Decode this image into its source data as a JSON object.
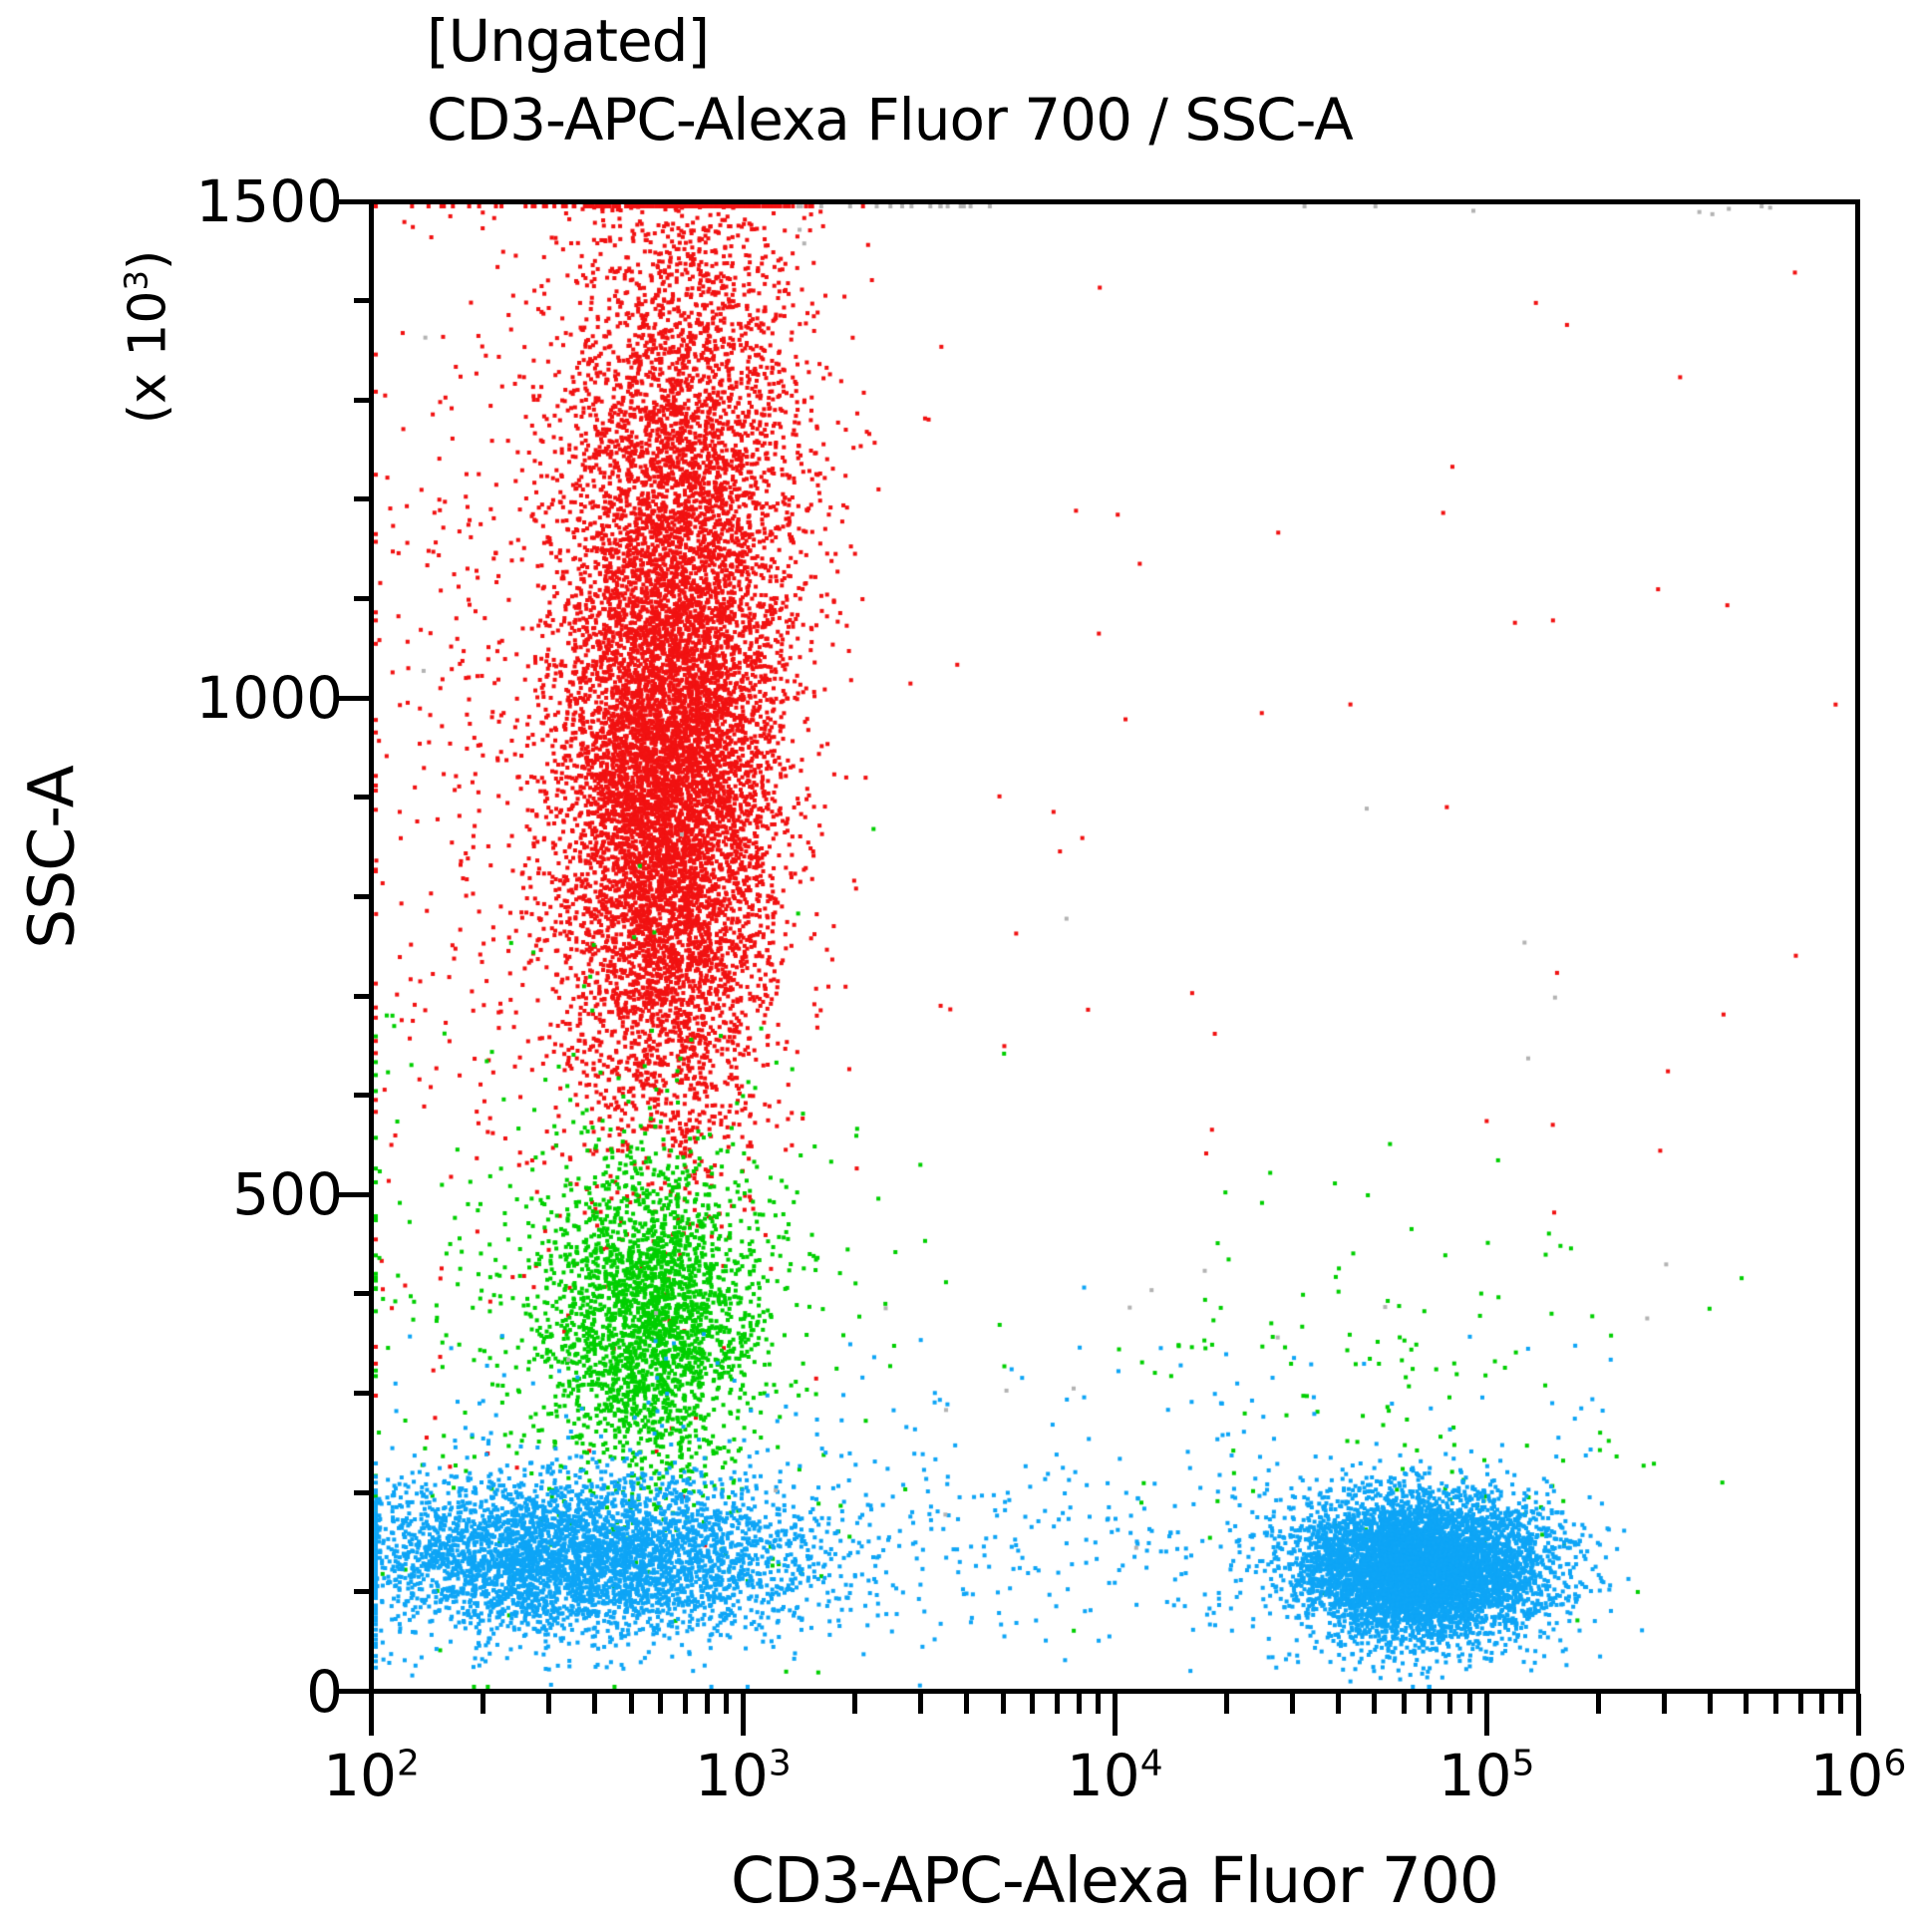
{
  "chart_data": {
    "type": "scatter",
    "title_lines": [
      "[Ungated]",
      "CD3-APC-Alexa Fluor 700 / SSC-A"
    ],
    "xlabel": "CD3-APC-Alexa Fluor 700",
    "ylabel": "SSC-A",
    "y_unit": {
      "prefix": "(x 10",
      "sup": "3",
      "suffix": ")"
    },
    "x_scale": "log",
    "x_range_log": [
      2,
      6
    ],
    "y_range": [
      0,
      1500
    ],
    "x_ticks": [
      {
        "base": "10",
        "exp": "2"
      },
      {
        "base": "10",
        "exp": "3"
      },
      {
        "base": "10",
        "exp": "4"
      },
      {
        "base": "10",
        "exp": "5"
      },
      {
        "base": "10",
        "exp": "6"
      }
    ],
    "x_minor_ticks_per_decade": [
      2,
      3,
      4,
      5,
      6,
      7,
      8,
      9
    ],
    "y_ticks": [
      "0",
      "500",
      "1000",
      "1500"
    ],
    "y_tick_values": [
      0,
      500,
      1000,
      1500
    ],
    "y_minor_step": 100,
    "grid": false,
    "legend": "none",
    "point_size": 4,
    "seed": 1337,
    "colors": {
      "axis": "#000000",
      "granulocytes_red": "#f11212",
      "monocytes_green": "#00cf00",
      "lymphocytes_blue": "#0ea5f6",
      "debris_gray": "#b3b3b3"
    },
    "populations": [
      {
        "name": "granulocytes-core",
        "color": "#f11212",
        "count": 6000,
        "x": {
          "dist": "gauss",
          "mu": 2.79,
          "sigma": 0.14
        },
        "y": {
          "dist": "gauss",
          "mu": 870,
          "sigma": 150
        }
      },
      {
        "name": "granulocytes-upper",
        "color": "#f11212",
        "count": 5200,
        "x": {
          "dist": "gauss",
          "mu": 2.83,
          "sigma": 0.165
        },
        "y": {
          "dist": "gauss",
          "mu": 1170,
          "sigma": 200
        }
      },
      {
        "name": "granulocytes-left-halo",
        "color": "#f11212",
        "count": 700,
        "x": {
          "dist": "gauss",
          "mu": 2.45,
          "sigma": 0.28
        },
        "y": {
          "dist": "gauss",
          "mu": 950,
          "sigma": 300
        }
      },
      {
        "name": "granulocytes-right-sparse",
        "color": "#f11212",
        "count": 48,
        "x": {
          "dist": "uniform",
          "min": 3.3,
          "max": 6.0
        },
        "y": {
          "dist": "uniform",
          "min": 480,
          "max": 1500
        }
      },
      {
        "name": "monocytes-core",
        "color": "#00cf00",
        "count": 2500,
        "x": {
          "dist": "gauss",
          "mu": 2.75,
          "sigma": 0.145
        },
        "y": {
          "dist": "gauss",
          "mu": 375,
          "sigma": 78
        }
      },
      {
        "name": "monocytes-halo",
        "color": "#00cf00",
        "count": 420,
        "x": {
          "dist": "gauss",
          "mu": 2.62,
          "sigma": 0.38
        },
        "y": {
          "dist": "gauss",
          "mu": 390,
          "sigma": 150
        }
      },
      {
        "name": "monocytes-right-scatter",
        "color": "#00cf00",
        "count": 140,
        "x": {
          "dist": "gauss",
          "mu": 4.78,
          "sigma": 0.42,
          "min": 3.4,
          "max": 5.7
        },
        "y": {
          "dist": "gauss",
          "mu": 300,
          "sigma": 105
        }
      },
      {
        "name": "lymphocytes-cd3-negative",
        "color": "#0ea5f6",
        "count": 4300,
        "x": {
          "dist": "gauss",
          "mu": 2.55,
          "sigma": 0.32
        },
        "y": {
          "dist": "gauss",
          "mu": 132,
          "sigma": 40
        }
      },
      {
        "name": "lymphocytes-cd3-positive",
        "color": "#0ea5f6",
        "count": 6800,
        "x": {
          "dist": "gauss",
          "mu": 4.83,
          "sigma": 0.165
        },
        "y": {
          "dist": "gauss",
          "mu": 122,
          "sigma": 36
        }
      },
      {
        "name": "lymphocytes-bridge",
        "color": "#0ea5f6",
        "count": 380,
        "x": {
          "dist": "uniform",
          "min": 2.05,
          "max": 4.45
        },
        "y": {
          "dist": "gauss",
          "mu": 150,
          "sigma": 55
        }
      },
      {
        "name": "lymphocytes-sparse-above",
        "color": "#0ea5f6",
        "count": 140,
        "x": {
          "dist": "uniform",
          "min": 2.0,
          "max": 5.35
        },
        "y": {
          "dist": "uniform",
          "min": 180,
          "max": 360
        }
      },
      {
        "name": "debris-gray-sparse",
        "color": "#b3b3b3",
        "count": 26,
        "x": {
          "dist": "uniform",
          "min": 2.0,
          "max": 5.75
        },
        "y": {
          "dist": "uniform",
          "min": 100,
          "max": 1480
        }
      },
      {
        "name": "debris-gray-top-pile",
        "color": "#b3b3b3",
        "count": 16,
        "x": {
          "dist": "uniform",
          "min": 3.1,
          "max": 3.7
        },
        "y": {
          "dist": "uniform",
          "min": 1500,
          "max": 1500
        }
      },
      {
        "name": "debris-gray-top-right",
        "color": "#b3b3b3",
        "count": 8,
        "x": {
          "dist": "uniform",
          "min": 4.3,
          "max": 5.8
        },
        "y": {
          "dist": "uniform",
          "min": 1490,
          "max": 1500
        }
      }
    ]
  }
}
